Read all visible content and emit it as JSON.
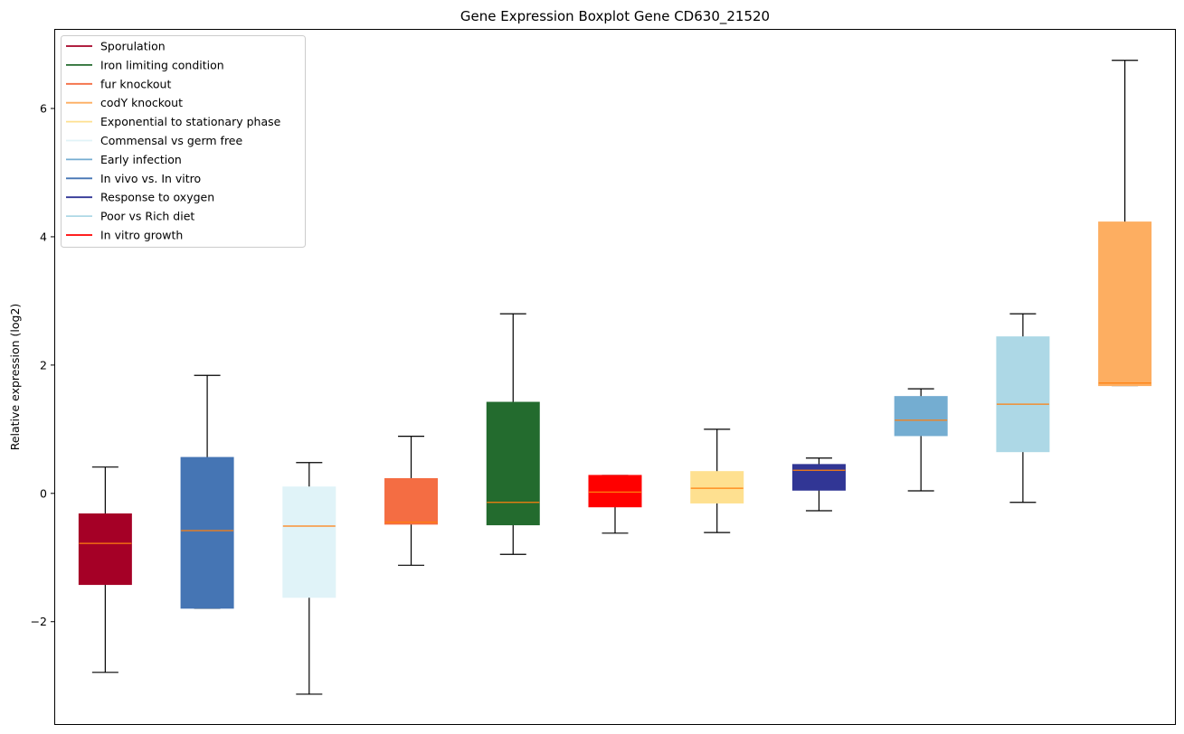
{
  "chart_data": {
    "type": "boxplot",
    "title": "Gene Expression Boxplot Gene CD630_21520",
    "xlabel": "",
    "ylabel": "Relative expression (log2)",
    "ylim": [
      -3.61,
      7.24
    ],
    "yticks": [
      -2,
      0,
      2,
      4,
      6
    ],
    "yticklabels": [
      "−2",
      "0",
      "2",
      "4",
      "6"
    ],
    "grid": false,
    "legend_position": "top-left",
    "legend": [
      {
        "label": "Sporulation",
        "color": "#a50026"
      },
      {
        "label": "Iron limiting condition",
        "color": "#236b2e"
      },
      {
        "label": "fur knockout",
        "color": "#f46d43"
      },
      {
        "label": "codY knockout",
        "color": "#fdae61"
      },
      {
        "label": "Exponential to stationary phase",
        "color": "#fee090"
      },
      {
        "label": "Commensal vs germ free",
        "color": "#e0f3f8"
      },
      {
        "label": "Early infection",
        "color": "#74add1"
      },
      {
        "label": "In vivo vs. In vitro",
        "color": "#4575b4"
      },
      {
        "label": "Response to oxygen",
        "color": "#313695"
      },
      {
        "label": "Poor vs Rich diet",
        "color": "#add8e6"
      },
      {
        "label": "In vitro growth",
        "color": "#ff0000"
      }
    ],
    "median_color": "#ff7f0e",
    "boxes": [
      {
        "name": "Sporulation",
        "color": "#a50026",
        "min": -2.79,
        "q1": -1.42,
        "median": -0.78,
        "q3": -0.32,
        "max": 0.41
      },
      {
        "name": "In vivo vs. In vitro",
        "color": "#4575b4",
        "min": -1.79,
        "q1": -1.79,
        "median": -0.58,
        "q3": 0.56,
        "max": 1.84
      },
      {
        "name": "Commensal vs germ free",
        "color": "#e0f3f8",
        "min": -3.13,
        "q1": -1.62,
        "median": -0.51,
        "q3": 0.1,
        "max": 0.48
      },
      {
        "name": "fur knockout",
        "color": "#f46d43",
        "min": -1.12,
        "q1": -0.48,
        "median": -0.45,
        "q3": 0.23,
        "max": 0.89
      },
      {
        "name": "Iron limiting condition",
        "color": "#236b2e",
        "min": -0.95,
        "q1": -0.49,
        "median": -0.14,
        "q3": 1.42,
        "max": 2.8
      },
      {
        "name": "In vitro growth",
        "color": "#ff0000",
        "min": -0.62,
        "q1": -0.21,
        "median": 0.02,
        "q3": 0.28,
        "max": 0.28
      },
      {
        "name": "Exponential to stationary phase",
        "color": "#fee090",
        "min": -0.61,
        "q1": -0.15,
        "median": 0.08,
        "q3": 0.34,
        "max": 1.0
      },
      {
        "name": "Response to oxygen",
        "color": "#313695",
        "min": -0.27,
        "q1": 0.05,
        "median": 0.36,
        "q3": 0.45,
        "max": 0.55
      },
      {
        "name": "Early infection",
        "color": "#74add1",
        "min": 0.04,
        "q1": 0.9,
        "median": 1.14,
        "q3": 1.51,
        "max": 1.63
      },
      {
        "name": "Poor vs Rich diet",
        "color": "#add8e6",
        "min": -0.14,
        "q1": 0.65,
        "median": 1.39,
        "q3": 2.44,
        "max": 2.8
      },
      {
        "name": "codY knockout",
        "color": "#fdae61",
        "min": 1.68,
        "q1": 1.68,
        "median": 1.72,
        "q3": 4.23,
        "max": 6.75
      }
    ]
  }
}
